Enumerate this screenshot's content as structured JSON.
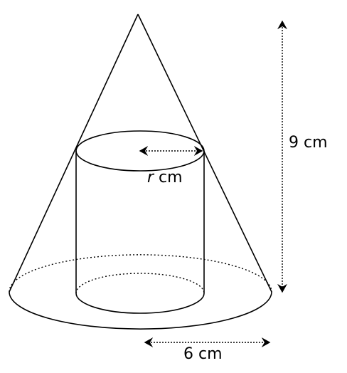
{
  "labels": {
    "height": "9 cm",
    "radius_var": "r",
    "radius_unit": " cm",
    "base_radius": "6 cm"
  },
  "colors": {
    "stroke": "#000000",
    "background": "#ffffff"
  }
}
